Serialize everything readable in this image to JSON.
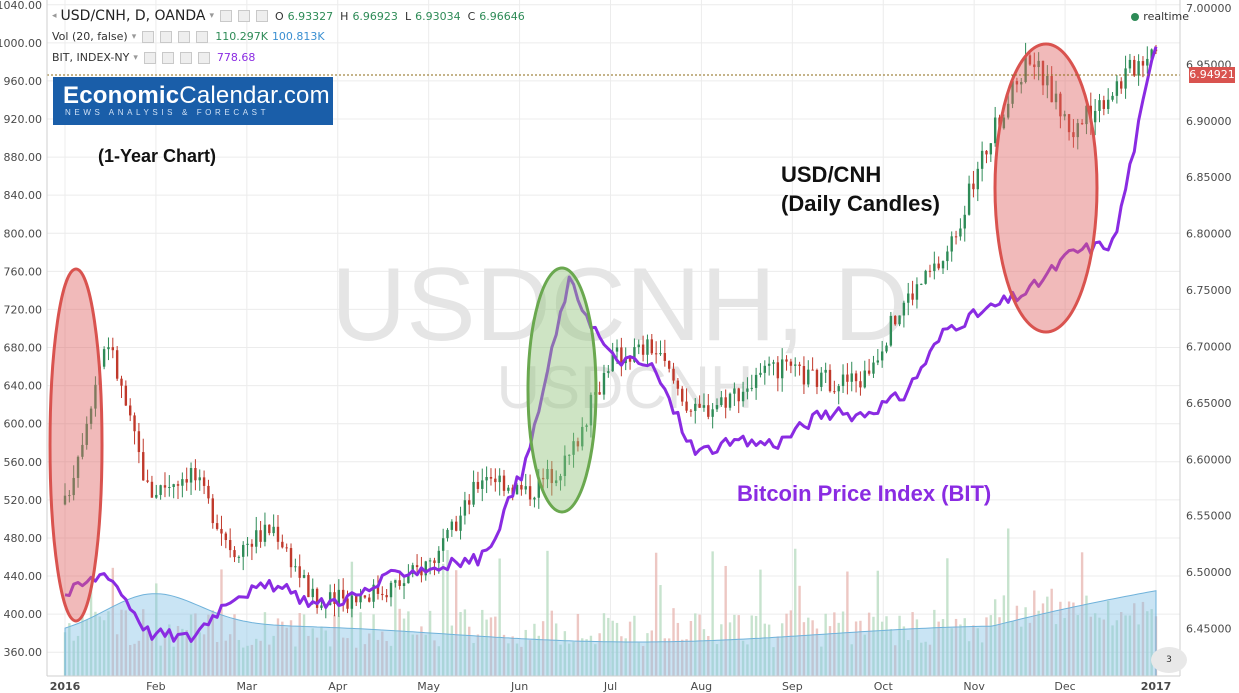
{
  "legend": {
    "symbol": "USD/CNH, D, OANDA",
    "ohlc": {
      "o_label": "O",
      "o": "6.93327",
      "h_label": "H",
      "h": "6.96923",
      "l_label": "L",
      "l": "6.93034",
      "c_label": "C",
      "c": "6.96646"
    },
    "volume": {
      "label": "Vol (20, false)",
      "v1": "110.297K",
      "v2": "100.813K"
    },
    "bit": {
      "label": "BIT, INDEX-NY",
      "value": "778.68"
    }
  },
  "realtime_label": "realtime",
  "logo": {
    "bold": "Economic",
    "rest": "Calendar.com",
    "tagline": "NEWS ANALYSIS & FORECAST"
  },
  "watermark": {
    "main": "USDCNH, D",
    "sub": "USDCNH"
  },
  "annotations": {
    "one_year": "(1-Year Chart)",
    "usdcnh_line1": "USD/CNH",
    "usdcnh_line2": "(Daily Candles)",
    "bit": "Bitcoin Price Index (BIT)"
  },
  "last_price_tag": "6.94921",
  "badge_text": "3",
  "colors": {
    "up": "#2e8b57",
    "down": "#c0392b",
    "bit": "#8a2be2",
    "volume": "#87c3e6",
    "red_ellipse": "#e06666",
    "green_ellipse": "#6aa84f"
  },
  "chart_data": {
    "type": "line",
    "title": "USD/CNH, D, OANDA",
    "x": [
      "2016",
      "Feb",
      "Mar",
      "Apr",
      "May",
      "Jun",
      "Jul",
      "Aug",
      "Sep",
      "Oct",
      "Nov",
      "Dec",
      "2017"
    ],
    "left_axis": {
      "label": "BIT",
      "ticks": [
        360,
        400,
        440,
        480,
        520,
        560,
        600,
        640,
        680,
        720,
        760,
        800,
        840,
        880,
        920,
        960,
        1000,
        1040
      ],
      "ylim": [
        335,
        1045
      ]
    },
    "right_axis": {
      "label": "USD/CNH",
      "ticks": [
        6.45,
        6.5,
        6.55,
        6.6,
        6.65,
        6.7,
        6.75,
        6.8,
        6.85,
        6.9,
        6.95,
        7.0
      ],
      "ylim": [
        6.408,
        7.007
      ]
    },
    "series": [
      {
        "name": "USD/CNH",
        "axis": "right",
        "values": [
          [
            "2016",
            6.56
          ],
          [
            "Jan mid",
            6.71
          ],
          [
            "Jan late",
            6.57
          ],
          [
            "Feb",
            6.59
          ],
          [
            "Feb late",
            6.52
          ],
          [
            "Mar",
            6.54
          ],
          [
            "Mar late",
            6.47
          ],
          [
            "Apr",
            6.48
          ],
          [
            "Apr late",
            6.49
          ],
          [
            "May",
            6.52
          ],
          [
            "May mid",
            6.59
          ],
          [
            "Jun",
            6.57
          ],
          [
            "Jun mid",
            6.6
          ],
          [
            "Jul",
            6.69
          ],
          [
            "Jul mid",
            6.7
          ],
          [
            "Aug",
            6.64
          ],
          [
            "Aug mid",
            6.66
          ],
          [
            "Sep",
            6.68
          ],
          [
            "Sep mid",
            6.67
          ],
          [
            "Oct",
            6.67
          ],
          [
            "Oct mid",
            6.74
          ],
          [
            "Nov",
            6.78
          ],
          [
            "Nov mid",
            6.88
          ],
          [
            "Nov late",
            6.96
          ],
          [
            "Dec",
            6.89
          ],
          [
            "Dec mid",
            6.93
          ],
          [
            "2017",
            6.97
          ]
        ]
      },
      {
        "name": "Bitcoin Price Index (BIT)",
        "axis": "left",
        "values": [
          [
            "2016",
            420
          ],
          [
            "Jan mid",
            445
          ],
          [
            "Jan late",
            380
          ],
          [
            "Feb",
            375
          ],
          [
            "Feb late",
            420
          ],
          [
            "Mar",
            430
          ],
          [
            "Mar late",
            410
          ],
          [
            "Apr",
            420
          ],
          [
            "Apr late",
            445
          ],
          [
            "May",
            450
          ],
          [
            "May mid",
            460
          ],
          [
            "Jun",
            560
          ],
          [
            "Jun mid",
            750
          ],
          [
            "Jul",
            670
          ],
          [
            "Jul mid",
            660
          ],
          [
            "Aug",
            570
          ],
          [
            "Aug mid",
            580
          ],
          [
            "Sep",
            580
          ],
          [
            "Sep mid",
            610
          ],
          [
            "Oct",
            610
          ],
          [
            "Oct mid",
            630
          ],
          [
            "Nov",
            700
          ],
          [
            "Nov mid",
            720
          ],
          [
            "Nov late",
            740
          ],
          [
            "Dec",
            780
          ],
          [
            "Dec mid",
            790
          ],
          [
            "2017",
            1000
          ]
        ]
      }
    ],
    "last_value": 6.94921
  }
}
